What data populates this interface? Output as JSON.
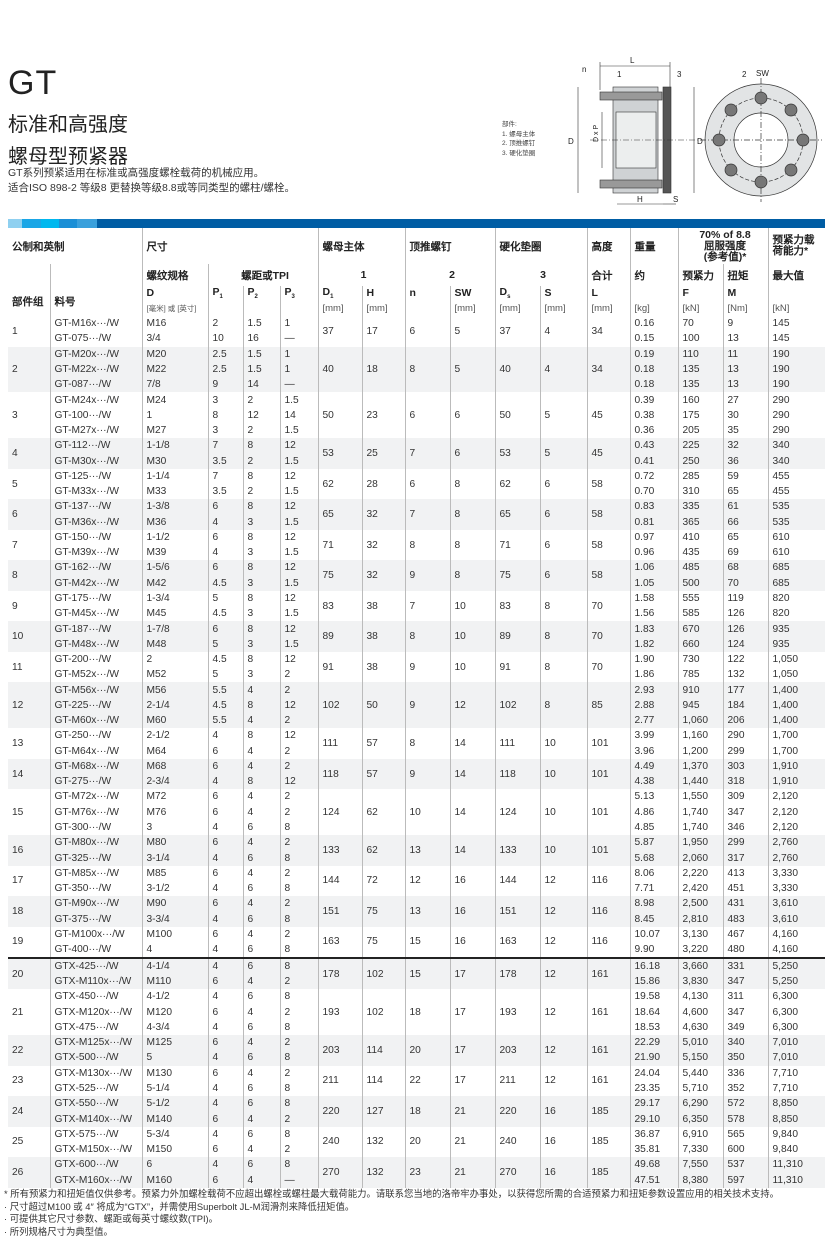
{
  "header": {
    "title": "GT",
    "subtitle1": "标准和高强度",
    "subtitle2": "螺母型预紧器",
    "desc1": "GT系列预紧适用在标准或高强度螺栓载荷的机械应用。",
    "desc2": "适合ISO 898-2 等级8 更替换等级8.8或等同类型的螺柱/螺栓。"
  },
  "diagram": {
    "legend_title": "部件:",
    "legend": [
      "1.  螺母主体",
      "2.  顶推螺钉",
      "3.  硬化垫圈"
    ],
    "labels": {
      "L": "L",
      "n": "n",
      "one": "1",
      "three": "3",
      "two": "2",
      "SW": "SW",
      "D1": "D",
      "DxP": "D x P",
      "H": "H",
      "S": "S"
    }
  },
  "colors": {
    "bar": "#005da4",
    "seg": [
      "#8fd0f0",
      "#1aa6e6",
      "#00b8ef",
      "#1b8fd6",
      "#3aa0dc"
    ],
    "alt_row": "#f1f2f3"
  },
  "table": {
    "h1": {
      "metric": "公制和英制",
      "size": "尺寸",
      "body": "螺母主体",
      "screw": "顶推螺钉",
      "washer": "硬化垫圈",
      "height": "高度",
      "weight": "重量",
      "yield": "70% of 8.8\n屈服强度\n(参考值)*",
      "capacity": "预紧力载\n荷能力*"
    },
    "h2": {
      "thread": "螺纹规格",
      "pitch": "螺距或TPI",
      "n1": "1",
      "n2": "2",
      "n3": "3",
      "total": "合计",
      "approx": "约",
      "preload": "预紧力",
      "torque": "扭矩",
      "max": "最大值"
    },
    "h3": {
      "group": "部件组",
      "part": "料号",
      "D": "D",
      "P1": "P",
      "P2": "P",
      "P3": "P",
      "D1": "D",
      "H": "H",
      "n": "n",
      "SW": "SW",
      "Ds": "D",
      "S": "S",
      "L": "L",
      "F": "F",
      "M": "M"
    },
    "units": {
      "D": "[毫米] 或 [英寸]",
      "mm": "[mm]",
      "kg": "[kg]",
      "kN": "[kN]",
      "Nm": "[Nm]"
    },
    "groups": [
      {
        "id": "1",
        "D1": "37",
        "H": "17",
        "n": "6",
        "SW": "5",
        "Ds": "37",
        "S": "4",
        "L": "34",
        "rows": [
          [
            "GT-M16x···/W",
            "M16",
            "2",
            "1.5",
            "1",
            "0.16",
            "70",
            "9",
            "145"
          ],
          [
            "GT-075···/W",
            "3/4",
            "10",
            "16",
            "—",
            "0.15",
            "100",
            "13",
            "145"
          ]
        ]
      },
      {
        "id": "2",
        "D1": "40",
        "H": "18",
        "n": "8",
        "SW": "5",
        "Ds": "40",
        "S": "4",
        "L": "34",
        "rows": [
          [
            "GT-M20x···/W",
            "M20",
            "2.5",
            "1.5",
            "1",
            "0.19",
            "110",
            "11",
            "190"
          ],
          [
            "GT-M22x···/W",
            "M22",
            "2.5",
            "1.5",
            "1",
            "0.18",
            "135",
            "13",
            "190"
          ],
          [
            "GT-087···/W",
            "7/8",
            "9",
            "14",
            "—",
            "0.18",
            "135",
            "13",
            "190"
          ]
        ]
      },
      {
        "id": "3",
        "D1": "50",
        "H": "23",
        "n": "6",
        "SW": "6",
        "Ds": "50",
        "S": "5",
        "L": "45",
        "rows": [
          [
            "GT-M24x···/W",
            "M24",
            "3",
            "2",
            "1.5",
            "0.39",
            "160",
            "27",
            "290"
          ],
          [
            "GT-100···/W",
            "1",
            "8",
            "12",
            "14",
            "0.38",
            "175",
            "30",
            "290"
          ],
          [
            "GT-M27x···/W",
            "M27",
            "3",
            "2",
            "1.5",
            "0.36",
            "205",
            "35",
            "290"
          ]
        ]
      },
      {
        "id": "4",
        "D1": "53",
        "H": "25",
        "n": "7",
        "SW": "6",
        "Ds": "53",
        "S": "5",
        "L": "45",
        "rows": [
          [
            "GT-112···/W",
            "1-1/8",
            "7",
            "8",
            "12",
            "0.43",
            "225",
            "32",
            "340"
          ],
          [
            "GT-M30x···/W",
            "M30",
            "3.5",
            "2",
            "1.5",
            "0.41",
            "250",
            "36",
            "340"
          ]
        ]
      },
      {
        "id": "5",
        "D1": "62",
        "H": "28",
        "n": "6",
        "SW": "8",
        "Ds": "62",
        "S": "6",
        "L": "58",
        "rows": [
          [
            "GT-125···/W",
            "1-1/4",
            "7",
            "8",
            "12",
            "0.72",
            "285",
            "59",
            "455"
          ],
          [
            "GT-M33x···/W",
            "M33",
            "3.5",
            "2",
            "1.5",
            "0.70",
            "310",
            "65",
            "455"
          ]
        ]
      },
      {
        "id": "6",
        "D1": "65",
        "H": "32",
        "n": "7",
        "SW": "8",
        "Ds": "65",
        "S": "6",
        "L": "58",
        "rows": [
          [
            "GT-137···/W",
            "1-3/8",
            "6",
            "8",
            "12",
            "0.83",
            "335",
            "61",
            "535"
          ],
          [
            "GT-M36x···/W",
            "M36",
            "4",
            "3",
            "1.5",
            "0.81",
            "365",
            "66",
            "535"
          ]
        ]
      },
      {
        "id": "7",
        "D1": "71",
        "H": "32",
        "n": "8",
        "SW": "8",
        "Ds": "71",
        "S": "6",
        "L": "58",
        "rows": [
          [
            "GT-150···/W",
            "1-1/2",
            "6",
            "8",
            "12",
            "0.97",
            "410",
            "65",
            "610"
          ],
          [
            "GT-M39x···/W",
            "M39",
            "4",
            "3",
            "1.5",
            "0.96",
            "435",
            "69",
            "610"
          ]
        ]
      },
      {
        "id": "8",
        "D1": "75",
        "H": "32",
        "n": "9",
        "SW": "8",
        "Ds": "75",
        "S": "6",
        "L": "58",
        "rows": [
          [
            "GT-162···/W",
            "1-5/6",
            "6",
            "8",
            "12",
            "1.06",
            "485",
            "68",
            "685"
          ],
          [
            "GT-M42x···/W",
            "M42",
            "4.5",
            "3",
            "1.5",
            "1.05",
            "500",
            "70",
            "685"
          ]
        ]
      },
      {
        "id": "9",
        "D1": "83",
        "H": "38",
        "n": "7",
        "SW": "10",
        "Ds": "83",
        "S": "8",
        "L": "70",
        "rows": [
          [
            "GT-175···/W",
            "1-3/4",
            "5",
            "8",
            "12",
            "1.58",
            "555",
            "119",
            "820"
          ],
          [
            "GT-M45x···/W",
            "M45",
            "4.5",
            "3",
            "1.5",
            "1.56",
            "585",
            "126",
            "820"
          ]
        ]
      },
      {
        "id": "10",
        "D1": "89",
        "H": "38",
        "n": "8",
        "SW": "10",
        "Ds": "89",
        "S": "8",
        "L": "70",
        "rows": [
          [
            "GT-187···/W",
            "1-7/8",
            "6",
            "8",
            "12",
            "1.83",
            "670",
            "126",
            "935"
          ],
          [
            "GT-M48x···/W",
            "M48",
            "5",
            "3",
            "1.5",
            "1.82",
            "660",
            "124",
            "935"
          ]
        ]
      },
      {
        "id": "11",
        "D1": "91",
        "H": "38",
        "n": "9",
        "SW": "10",
        "Ds": "91",
        "S": "8",
        "L": "70",
        "rows": [
          [
            "GT-200···/W",
            "2",
            "4.5",
            "8",
            "12",
            "1.90",
            "730",
            "122",
            "1,050"
          ],
          [
            "GT-M52x···/W",
            "M52",
            "5",
            "3",
            "2",
            "1.86",
            "785",
            "132",
            "1,050"
          ]
        ]
      },
      {
        "id": "12",
        "D1": "102",
        "H": "50",
        "n": "9",
        "SW": "12",
        "Ds": "102",
        "S": "8",
        "L": "85",
        "rows": [
          [
            "GT-M56x···/W",
            "M56",
            "5.5",
            "4",
            "2",
            "2.93",
            "910",
            "177",
            "1,400"
          ],
          [
            "GT-225···/W",
            "2-1/4",
            "4.5",
            "8",
            "12",
            "2.88",
            "945",
            "184",
            "1,400"
          ],
          [
            "GT-M60x···/W",
            "M60",
            "5.5",
            "4",
            "2",
            "2.77",
            "1,060",
            "206",
            "1,400"
          ]
        ]
      },
      {
        "id": "13",
        "D1": "111",
        "H": "57",
        "n": "8",
        "SW": "14",
        "Ds": "111",
        "S": "10",
        "L": "101",
        "rows": [
          [
            "GT-250···/W",
            "2-1/2",
            "4",
            "8",
            "12",
            "3.99",
            "1,160",
            "290",
            "1,700"
          ],
          [
            "GT-M64x···/W",
            "M64",
            "6",
            "4",
            "2",
            "3.96",
            "1,200",
            "299",
            "1,700"
          ]
        ]
      },
      {
        "id": "14",
        "D1": "118",
        "H": "57",
        "n": "9",
        "SW": "14",
        "Ds": "118",
        "S": "10",
        "L": "101",
        "rows": [
          [
            "GT-M68x···/W",
            "M68",
            "6",
            "4",
            "2",
            "4.49",
            "1,370",
            "303",
            "1,910"
          ],
          [
            "GT-275···/W",
            "2-3/4",
            "4",
            "8",
            "12",
            "4.38",
            "1,440",
            "318",
            "1,910"
          ]
        ]
      },
      {
        "id": "15",
        "D1": "124",
        "H": "62",
        "n": "10",
        "SW": "14",
        "Ds": "124",
        "S": "10",
        "L": "101",
        "rows": [
          [
            "GT-M72x···/W",
            "M72",
            "6",
            "4",
            "2",
            "5.13",
            "1,550",
            "309",
            "2,120"
          ],
          [
            "GT-M76x···/W",
            "M76",
            "6",
            "4",
            "2",
            "4.86",
            "1,740",
            "347",
            "2,120"
          ],
          [
            "GT-300···/W",
            "3",
            "4",
            "6",
            "8",
            "4.85",
            "1,740",
            "346",
            "2,120"
          ]
        ]
      },
      {
        "id": "16",
        "D1": "133",
        "H": "62",
        "n": "13",
        "SW": "14",
        "Ds": "133",
        "S": "10",
        "L": "101",
        "rows": [
          [
            "GT-M80x···/W",
            "M80",
            "6",
            "4",
            "2",
            "5.87",
            "1,950",
            "299",
            "2,760"
          ],
          [
            "GT-325···/W",
            "3-1/4",
            "4",
            "6",
            "8",
            "5.68",
            "2,060",
            "317",
            "2,760"
          ]
        ]
      },
      {
        "id": "17",
        "D1": "144",
        "H": "72",
        "n": "12",
        "SW": "16",
        "Ds": "144",
        "S": "12",
        "L": "116",
        "rows": [
          [
            "GT-M85x···/W",
            "M85",
            "6",
            "4",
            "2",
            "8.06",
            "2,220",
            "413",
            "3,330"
          ],
          [
            "GT-350···/W",
            "3-1/2",
            "4",
            "6",
            "8",
            "7.71",
            "2,420",
            "451",
            "3,330"
          ]
        ]
      },
      {
        "id": "18",
        "D1": "151",
        "H": "75",
        "n": "13",
        "SW": "16",
        "Ds": "151",
        "S": "12",
        "L": "116",
        "rows": [
          [
            "GT-M90x···/W",
            "M90",
            "6",
            "4",
            "2",
            "8.98",
            "2,500",
            "431",
            "3,610"
          ],
          [
            "GT-375···/W",
            "3-3/4",
            "4",
            "6",
            "8",
            "8.45",
            "2,810",
            "483",
            "3,610"
          ]
        ]
      },
      {
        "id": "19",
        "D1": "163",
        "H": "75",
        "n": "15",
        "SW": "16",
        "Ds": "163",
        "S": "12",
        "L": "116",
        "rows": [
          [
            "GT-M100x···/W",
            "M100",
            "6",
            "4",
            "2",
            "10.07",
            "3,130",
            "467",
            "4,160"
          ],
          [
            "GT-400···/W",
            "4",
            "4",
            "6",
            "8",
            "9.90",
            "3,220",
            "480",
            "4,160"
          ]
        ]
      },
      {
        "id": "20",
        "D1": "178",
        "H": "102",
        "n": "15",
        "SW": "17",
        "Ds": "178",
        "S": "12",
        "L": "161",
        "rows": [
          [
            "GTX-425···/W",
            "4-1/4",
            "4",
            "6",
            "8",
            "16.18",
            "3,660",
            "331",
            "5,250"
          ],
          [
            "GTX-M110x···/W",
            "M110",
            "6",
            "4",
            "2",
            "15.86",
            "3,830",
            "347",
            "5,250"
          ]
        ]
      },
      {
        "id": "21",
        "D1": "193",
        "H": "102",
        "n": "18",
        "SW": "17",
        "Ds": "193",
        "S": "12",
        "L": "161",
        "rows": [
          [
            "GTX-450···/W",
            "4-1/2",
            "4",
            "6",
            "8",
            "19.58",
            "4,130",
            "311",
            "6,300"
          ],
          [
            "GTX-M120x···/W",
            "M120",
            "6",
            "4",
            "2",
            "18.64",
            "4,600",
            "347",
            "6,300"
          ],
          [
            "GTX-475···/W",
            "4-3/4",
            "4",
            "6",
            "8",
            "18.53",
            "4,630",
            "349",
            "6,300"
          ]
        ]
      },
      {
        "id": "22",
        "D1": "203",
        "H": "114",
        "n": "20",
        "SW": "17",
        "Ds": "203",
        "S": "12",
        "L": "161",
        "rows": [
          [
            "GTX-M125x···/W",
            "M125",
            "6",
            "4",
            "2",
            "22.29",
            "5,010",
            "340",
            "7,010"
          ],
          [
            "GTX-500···/W",
            "5",
            "4",
            "6",
            "8",
            "21.90",
            "5,150",
            "350",
            "7,010"
          ]
        ]
      },
      {
        "id": "23",
        "D1": "211",
        "H": "114",
        "n": "22",
        "SW": "17",
        "Ds": "211",
        "S": "12",
        "L": "161",
        "rows": [
          [
            "GTX-M130x···/W",
            "M130",
            "6",
            "4",
            "2",
            "24.04",
            "5,440",
            "336",
            "7,710"
          ],
          [
            "GTX-525···/W",
            "5-1/4",
            "4",
            "6",
            "8",
            "23.35",
            "5,710",
            "352",
            "7,710"
          ]
        ]
      },
      {
        "id": "24",
        "D1": "220",
        "H": "127",
        "n": "18",
        "SW": "21",
        "Ds": "220",
        "S": "16",
        "L": "185",
        "rows": [
          [
            "GTX-550···/W",
            "5-1/2",
            "4",
            "6",
            "8",
            "29.17",
            "6,290",
            "572",
            "8,850"
          ],
          [
            "GTX-M140x···/W",
            "M140",
            "6",
            "4",
            "2",
            "29.10",
            "6,350",
            "578",
            "8,850"
          ]
        ]
      },
      {
        "id": "25",
        "D1": "240",
        "H": "132",
        "n": "20",
        "SW": "21",
        "Ds": "240",
        "S": "16",
        "L": "185",
        "rows": [
          [
            "GTX-575···/W",
            "5-3/4",
            "4",
            "6",
            "8",
            "36.87",
            "6,910",
            "565",
            "9,840"
          ],
          [
            "GTX-M150x···/W",
            "M150",
            "6",
            "4",
            "2",
            "35.81",
            "7,330",
            "600",
            "9,840"
          ]
        ]
      },
      {
        "id": "26",
        "D1": "270",
        "H": "132",
        "n": "23",
        "SW": "21",
        "Ds": "270",
        "S": "16",
        "L": "185",
        "rows": [
          [
            "GTX-600···/W",
            "6",
            "4",
            "6",
            "8",
            "49.68",
            "7,550",
            "537",
            "11,310"
          ],
          [
            "GTX-M160x···/W",
            "M160",
            "6",
            "4",
            "—",
            "47.51",
            "8,380",
            "597",
            "11,310"
          ]
        ]
      }
    ]
  },
  "footnotes": [
    "* 所有预紧力和扭矩值仅供参考。预紧力外加螺栓载荷不应超出螺栓或螺柱最大载荷能力。请联系您当地的洛帝牢办事处，以获得您所需的合适预紧力和扭矩参数设置应用的相关技术支持。",
    "· 尺寸超过M100 或 4″ 将成为“GTX”，并需使用Superbolt JL-M润滑剂来降低扭矩值。",
    "· 可提供其它尺寸参数、螺距或每英寸螺纹数(TPI)。",
    "· 所列规格尺寸为典型值。"
  ]
}
